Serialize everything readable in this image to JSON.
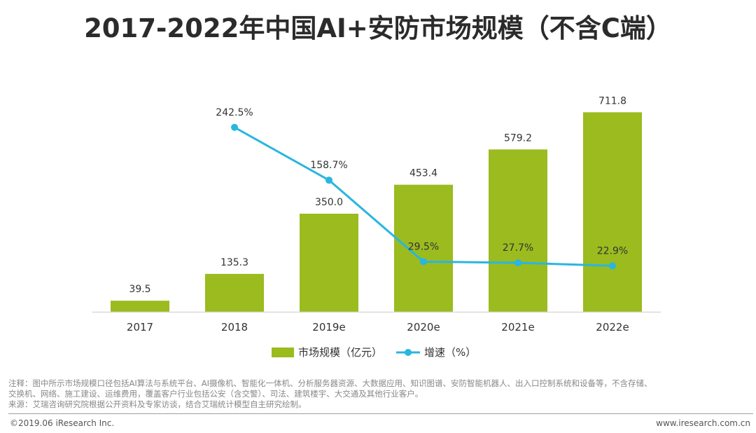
{
  "title": "2017-2022年中国AI+安防市场规模（不含C端）",
  "notes": {
    "line1": "注释：图中所示市场规模口径包括AI算法与系统平台、AI摄像机、智能化一体机、分析服务器资源、大数据应用、知识图谱、安防智能机器人、出入口控制系统和设备等，不含存储、",
    "line2": "交换机、网络、施工建设、运维费用，覆盖客户行业包括公安（含交警）、司法、建筑楼宇、大交通及其他行业客户。",
    "line3": "来源：艾瑞咨询研究院根据公开资料及专家访谈，结合艾瑞统计模型自主研究绘制。"
  },
  "footer": {
    "copyright": "©2019.06 iResearch Inc.",
    "website": "www.iresearch.com.cn"
  },
  "colors": {
    "bar": "#9bbb1f",
    "line": "#29b6e0",
    "axis": "#d9d9d9"
  },
  "chart_data": {
    "type": "bar",
    "categories": [
      "2017",
      "2018",
      "2019e",
      "2020e",
      "2021e",
      "2022e"
    ],
    "series": [
      {
        "name": "市场规模（亿元）",
        "type": "bar",
        "axis": "left",
        "values": [
          39.5,
          135.3,
          350.0,
          453.4,
          579.2,
          711.8
        ],
        "labels": [
          "39.5",
          "135.3",
          "350.0",
          "453.4",
          "579.2",
          "711.8"
        ]
      },
      {
        "name": "增速（%）",
        "type": "line",
        "axis": "right",
        "values": [
          null,
          242.5,
          158.7,
          29.5,
          27.7,
          22.9
        ],
        "labels": [
          null,
          "242.5%",
          "158.7%",
          "29.5%",
          "27.7%",
          "22.9%"
        ]
      }
    ],
    "bar_axis_range": [
      0,
      900
    ],
    "line_axis_range": [
      -50,
      350
    ],
    "grid": false,
    "legend": "bottom-center"
  }
}
